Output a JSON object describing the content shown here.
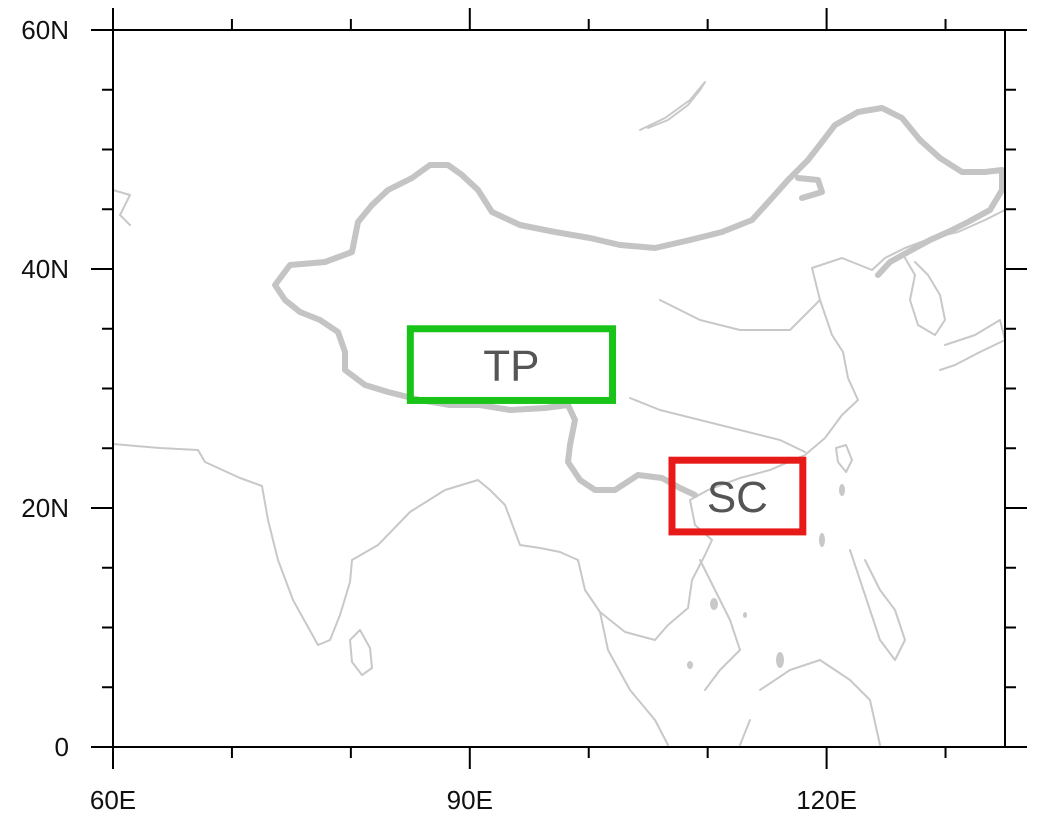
{
  "map": {
    "projection": "cylindrical equidistant",
    "lon_range": [
      60,
      135
    ],
    "lat_range": [
      0,
      60
    ],
    "x_major_ticks": [
      {
        "lon": 60,
        "label": "60E"
      },
      {
        "lon": 90,
        "label": "90E"
      },
      {
        "lon": 120,
        "label": "120E"
      }
    ],
    "x_minor_ticks": [
      70,
      80,
      100,
      110,
      130
    ],
    "y_major_ticks": [
      {
        "lat": 0,
        "label": "0"
      },
      {
        "lat": 20,
        "label": "20N"
      },
      {
        "lat": 40,
        "label": "40N"
      },
      {
        "lat": 60,
        "label": "60N"
      }
    ],
    "y_minor_ticks": [
      5,
      10,
      15,
      25,
      30,
      35,
      45,
      50,
      55
    ],
    "coastline_color": "#c8c8c8",
    "regions": [
      {
        "label": "TP",
        "color": "#19c419",
        "lon": [
          85,
          102
        ],
        "lat": [
          29,
          35
        ]
      },
      {
        "label": "SC",
        "color": "#e81919",
        "lon": [
          107,
          118
        ],
        "lat": [
          18,
          24
        ]
      }
    ]
  }
}
